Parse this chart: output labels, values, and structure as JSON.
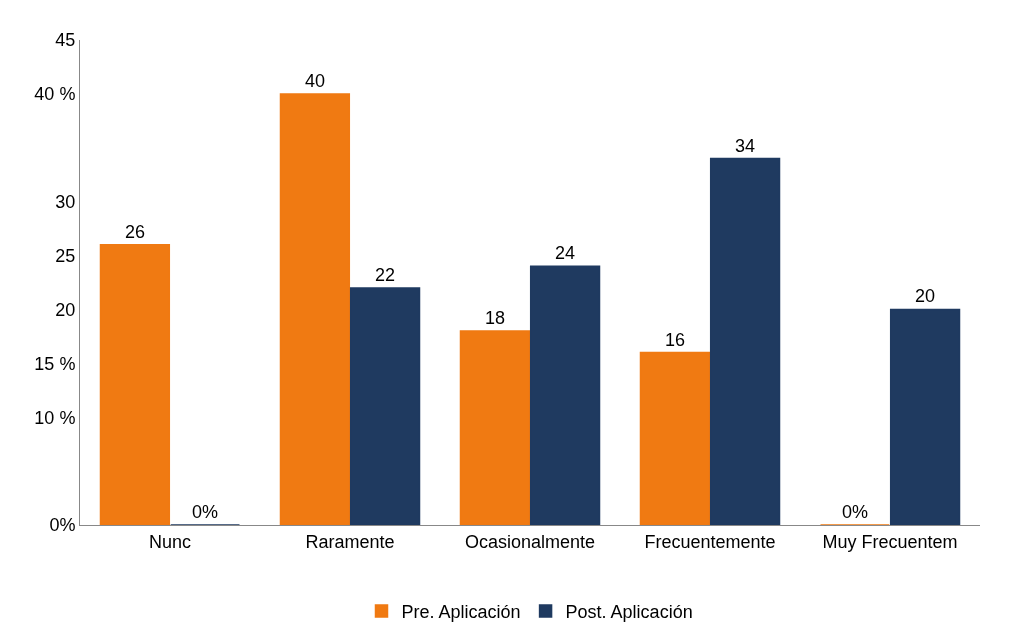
{
  "chart_data": {
    "type": "bar",
    "categories": [
      "Nunc",
      "Raramente",
      "Ocasionalmente",
      "Frecuentemente",
      "Muy Frecuentem"
    ],
    "series": [
      {
        "name": "Pre. Aplicación",
        "color": "#f07a12",
        "values": [
          26,
          40,
          18,
          16,
          0
        ],
        "value_labels": [
          "26",
          "40",
          "18",
          "16",
          "0%"
        ]
      },
      {
        "name": "Post. Aplicación",
        "color": "#1f3a60",
        "values": [
          0,
          22,
          24,
          34,
          20
        ],
        "value_labels": [
          "0%",
          "22",
          "24",
          "34",
          "20"
        ]
      }
    ],
    "ylim": [
      0,
      45
    ],
    "yticks": [
      {
        "value": 0,
        "label": "0%"
      },
      {
        "value": 10,
        "label": "10 %"
      },
      {
        "value": 15,
        "label": "15 %"
      },
      20,
      25,
      30,
      {
        "value": 40,
        "label": "40 %"
      },
      45
    ],
    "legend": "bottom"
  }
}
